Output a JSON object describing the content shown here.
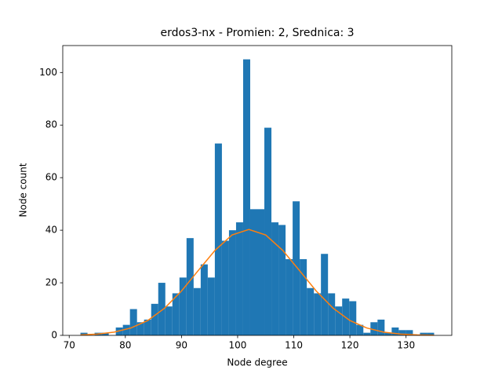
{
  "chart_data": {
    "type": "histogram",
    "title": "erdos3-nx - Promien: 2, Srednica: 3",
    "xlabel": "Node degree",
    "ylabel": "Node count",
    "color": "#1f77b4",
    "bins": [
      72,
      73.26,
      74.52,
      75.78,
      77.04,
      78.3,
      79.56,
      80.82,
      82.08,
      83.34,
      84.6,
      85.86,
      87.12,
      88.38,
      89.64,
      90.9,
      92.16,
      93.42,
      94.68,
      95.94,
      97.2,
      98.46,
      99.72,
      100.98,
      102.24,
      103.5,
      104.76,
      106.02,
      107.28,
      108.54,
      109.8,
      111.06,
      112.32,
      113.58,
      114.84,
      116.1,
      117.36,
      118.62,
      119.88,
      121.14,
      122.4,
      123.66,
      124.92,
      126.18,
      127.44,
      128.7,
      129.96,
      131.22,
      132.48,
      133.74,
      135
    ],
    "values": [
      1,
      0,
      1,
      1,
      0,
      3,
      4,
      10,
      5,
      6,
      12,
      20,
      11,
      16,
      22,
      37,
      18,
      27,
      22,
      73,
      36,
      40,
      43,
      105,
      48,
      48,
      79,
      43,
      42,
      29,
      51,
      29,
      18,
      16,
      31,
      16,
      11,
      14,
      13,
      4,
      1,
      5,
      6,
      1,
      3,
      2,
      2,
      0,
      1,
      1
    ],
    "xlim": [
      68.85,
      138.15
    ],
    "ylim": [
      0,
      110.25
    ],
    "xticks": [
      70,
      80,
      90,
      100,
      110,
      120,
      130
    ],
    "yticks": [
      0,
      20,
      40,
      60,
      80,
      100
    ],
    "curve": {
      "type": "line",
      "color": "#ff7f0e",
      "x": [
        72,
        75,
        78,
        81,
        84,
        87,
        90,
        93,
        96,
        99,
        102,
        105,
        108,
        111,
        114,
        117,
        120,
        123,
        126,
        129,
        132,
        135
      ],
      "values": [
        0.18,
        0.5,
        1.24,
        2.82,
        5.66,
        10.36,
        16.89,
        24.7,
        32.4,
        38.2,
        40.3,
        38.2,
        32.4,
        24.7,
        16.89,
        10.36,
        5.66,
        2.82,
        1.24,
        0.5,
        0.18,
        0.06
      ]
    }
  }
}
